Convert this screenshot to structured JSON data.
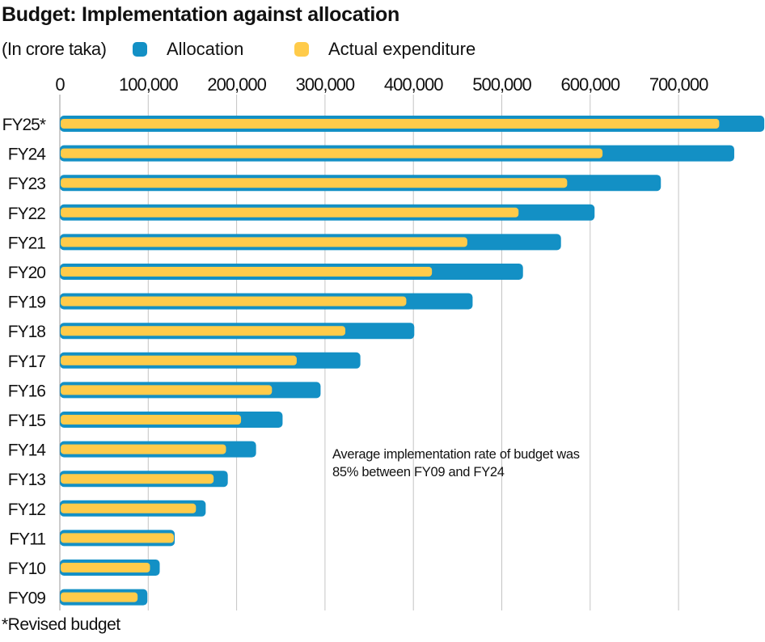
{
  "title": "Budget: Implementation against allocation",
  "unit_label": "(In crore taka)",
  "legend": [
    {
      "label": "Allocation",
      "color": "#1390c5"
    },
    {
      "label": "Actual expenditure",
      "color": "#ffcb4a"
    }
  ],
  "annotation": [
    "Average implementation rate of budget was",
    "85% between FY09 and FY24"
  ],
  "footnote": "*Revised budget",
  "chart_data": {
    "type": "bar",
    "orientation": "horizontal",
    "title": "Budget: Implementation against allocation",
    "xlabel": "In crore taka",
    "ylabel": "",
    "xlim": [
      0,
      797000
    ],
    "x_ticks": [
      0,
      100000,
      200000,
      300000,
      400000,
      500000,
      600000,
      700000
    ],
    "x_tick_labels": [
      "0",
      "100,000",
      "200,000",
      "300,000",
      "400,000",
      "500,000",
      "600,000",
      "700,000"
    ],
    "grid": "vertical",
    "legend_position": "top",
    "categories": [
      "FY25*",
      "FY24",
      "FY23",
      "FY22",
      "FY21",
      "FY20",
      "FY19",
      "FY18",
      "FY17",
      "FY16",
      "FY15",
      "FY14",
      "FY13",
      "FY12",
      "FY11",
      "FY10",
      "FY09"
    ],
    "series": [
      {
        "name": "Allocation",
        "color": "#1390c5",
        "values": [
          797000,
          763000,
          680000,
          605000,
          567000,
          524000,
          467000,
          401000,
          340000,
          295000,
          252000,
          222000,
          190000,
          165000,
          130000,
          113000,
          99000
        ]
      },
      {
        "name": "Actual expenditure",
        "color": "#ffcb4a",
        "values": [
          746000,
          614000,
          574000,
          519000,
          461000,
          421000,
          392000,
          323000,
          268000,
          240000,
          205000,
          188000,
          174000,
          154000,
          129000,
          102000,
          88000
        ]
      }
    ]
  }
}
